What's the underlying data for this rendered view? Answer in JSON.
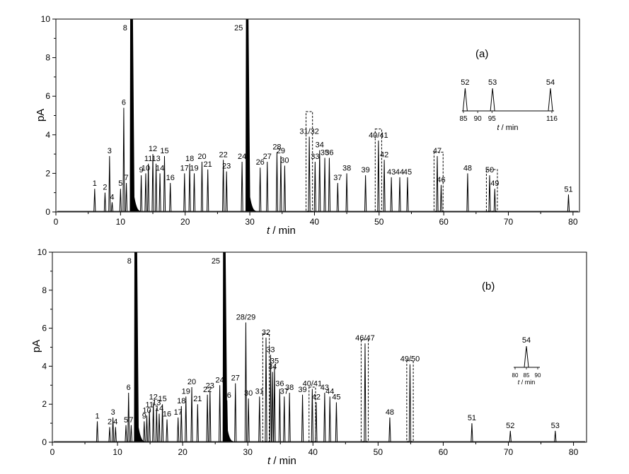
{
  "chart_data": [
    {
      "type": "line",
      "annotation": "(a)",
      "xlabel_var": "t",
      "xlabel_unit": " / min",
      "ylabel": "pA",
      "xlim": [
        0,
        81
      ],
      "ylim": [
        0,
        10
      ],
      "xticks": [
        "0",
        "10",
        "20",
        "30",
        "40",
        "50",
        "60",
        "70",
        "80"
      ],
      "yticks": [
        "0",
        "2",
        "4",
        "6",
        "8",
        "10"
      ],
      "peaks": [
        {
          "label": "1",
          "t": 6.0,
          "h": 1.2
        },
        {
          "label": "2",
          "t": 7.6,
          "h": 1.0
        },
        {
          "label": "3",
          "t": 8.3,
          "h": 2.9
        },
        {
          "label": "4",
          "t": 8.7,
          "h": 0.5
        },
        {
          "label": "5",
          "t": 10.0,
          "h": 1.2
        },
        {
          "label": "6",
          "t": 10.5,
          "h": 5.4
        },
        {
          "label": "7",
          "t": 10.9,
          "h": 1.5
        },
        {
          "label": "8",
          "t": 11.7,
          "h": 11.0
        },
        {
          "label": "9",
          "t": 13.2,
          "h": 1.9
        },
        {
          "label": "10",
          "t": 13.9,
          "h": 2.0
        },
        {
          "label": "11",
          "t": 14.3,
          "h": 2.5
        },
        {
          "label": "12",
          "t": 15.0,
          "h": 3.0
        },
        {
          "label": "13",
          "t": 15.5,
          "h": 2.5
        },
        {
          "label": "14",
          "t": 16.1,
          "h": 2.0
        },
        {
          "label": "15",
          "t": 16.8,
          "h": 2.9
        },
        {
          "label": "16",
          "t": 17.7,
          "h": 1.5
        },
        {
          "label": "17",
          "t": 19.9,
          "h": 2.0
        },
        {
          "label": "18",
          "t": 20.7,
          "h": 2.5
        },
        {
          "label": "19",
          "t": 21.4,
          "h": 2.0
        },
        {
          "label": "20",
          "t": 22.6,
          "h": 2.6
        },
        {
          "label": "21",
          "t": 23.5,
          "h": 2.2
        },
        {
          "label": "22",
          "t": 25.9,
          "h": 2.7
        },
        {
          "label": "23",
          "t": 26.4,
          "h": 2.1
        },
        {
          "label": "24",
          "t": 28.8,
          "h": 2.6
        },
        {
          "label": "25",
          "t": 29.6,
          "h": 10.0
        },
        {
          "label": "26",
          "t": 31.6,
          "h": 2.3
        },
        {
          "label": "27",
          "t": 32.7,
          "h": 2.6
        },
        {
          "label": "28",
          "t": 34.2,
          "h": 3.1
        },
        {
          "label": "29",
          "t": 34.8,
          "h": 2.9
        },
        {
          "label": "30",
          "t": 35.4,
          "h": 2.4
        },
        {
          "label": "31/32",
          "t": 39.2,
          "h": 3.9
        },
        {
          "label": "33",
          "t": 40.1,
          "h": 2.6
        },
        {
          "label": "34",
          "t": 40.8,
          "h": 3.2
        },
        {
          "label": "35",
          "t": 41.6,
          "h": 2.8
        },
        {
          "label": "36",
          "t": 42.3,
          "h": 2.8
        },
        {
          "label": "37",
          "t": 43.6,
          "h": 1.5
        },
        {
          "label": "38",
          "t": 45.0,
          "h": 2.0
        },
        {
          "label": "39",
          "t": 47.9,
          "h": 1.9
        },
        {
          "label": "40/41",
          "t": 49.9,
          "h": 3.7
        },
        {
          "label": "42",
          "t": 50.8,
          "h": 2.7
        },
        {
          "label": "43",
          "t": 51.9,
          "h": 1.8
        },
        {
          "label": "44",
          "t": 53.2,
          "h": 1.8
        },
        {
          "label": "45",
          "t": 54.4,
          "h": 1.8
        },
        {
          "label": "46",
          "t": 59.6,
          "h": 1.4
        },
        {
          "label": "47",
          "t": 59.0,
          "h": 2.9
        },
        {
          "label": "48",
          "t": 63.7,
          "h": 2.0
        },
        {
          "label": "50",
          "t": 67.1,
          "h": 1.9
        },
        {
          "label": "49",
          "t": 67.9,
          "h": 1.2
        },
        {
          "label": "51",
          "t": 79.3,
          "h": 0.9
        }
      ],
      "boxes": [
        {
          "t1": 38.7,
          "t2": 39.7,
          "h": 5.2
        },
        {
          "t1": 49.4,
          "t2": 50.4,
          "h": 4.3
        },
        {
          "t1": 58.5,
          "t2": 59.9,
          "h": 3.1
        },
        {
          "t1": 66.6,
          "t2": 68.3,
          "h": 2.2
        }
      ],
      "inset": {
        "xlabel_var": "t",
        "xlabel_unit": " / min",
        "ticks": [
          "85",
          "90",
          "95",
          "116"
        ],
        "peaks": [
          {
            "label": "52",
            "t": 85.6
          },
          {
            "label": "53",
            "t": 95.2
          },
          {
            "label": "54",
            "t": 115.5
          }
        ]
      }
    },
    {
      "type": "line",
      "annotation": "(b)",
      "xlabel_var": "t",
      "xlabel_unit": " / min",
      "ylabel": "pA",
      "xlim": [
        0,
        82
      ],
      "ylim": [
        0,
        10
      ],
      "xticks": [
        "0",
        "10",
        "20",
        "30",
        "40",
        "50",
        "60",
        "70",
        "80"
      ],
      "yticks": [
        "0",
        "2",
        "4",
        "6",
        "8",
        "10"
      ],
      "peaks": [
        {
          "label": "1",
          "t": 6.9,
          "h": 1.1
        },
        {
          "label": "2",
          "t": 8.8,
          "h": 0.8
        },
        {
          "label": "3",
          "t": 9.3,
          "h": 1.3
        },
        {
          "label": "4",
          "t": 9.7,
          "h": 0.8
        },
        {
          "label": "5",
          "t": 11.3,
          "h": 0.9
        },
        {
          "label": "6",
          "t": 11.7,
          "h": 2.6
        },
        {
          "label": "7",
          "t": 12.1,
          "h": 0.9
        },
        {
          "label": "8",
          "t": 12.8,
          "h": 11.0
        },
        {
          "label": "9",
          "t": 14.1,
          "h": 1.1
        },
        {
          "label": "10",
          "t": 14.5,
          "h": 1.4
        },
        {
          "label": "11",
          "t": 14.9,
          "h": 1.7
        },
        {
          "label": "12",
          "t": 15.5,
          "h": 2.1
        },
        {
          "label": "13",
          "t": 16.0,
          "h": 1.8
        },
        {
          "label": "14",
          "t": 16.4,
          "h": 1.5
        },
        {
          "label": "15",
          "t": 16.9,
          "h": 2.0
        },
        {
          "label": "16",
          "t": 17.6,
          "h": 1.2
        },
        {
          "label": "17",
          "t": 19.3,
          "h": 1.3
        },
        {
          "label": "18",
          "t": 19.8,
          "h": 1.9
        },
        {
          "label": "19",
          "t": 20.5,
          "h": 2.4
        },
        {
          "label": "20",
          "t": 21.4,
          "h": 2.9
        },
        {
          "label": "21",
          "t": 22.3,
          "h": 2.0
        },
        {
          "label": "22",
          "t": 23.8,
          "h": 2.5
        },
        {
          "label": "23",
          "t": 24.2,
          "h": 2.7
        },
        {
          "label": "24",
          "t": 25.7,
          "h": 3.0
        },
        {
          "label": "25",
          "t": 26.4,
          "h": 10.0
        },
        {
          "label": "26",
          "t": 26.8,
          "h": 2.2
        },
        {
          "label": "27",
          "t": 28.1,
          "h": 3.1
        },
        {
          "label": "28/29",
          "t": 29.7,
          "h": 6.3
        },
        {
          "label": "30",
          "t": 30.1,
          "h": 2.3
        },
        {
          "label": "31",
          "t": 31.8,
          "h": 2.4
        },
        {
          "label": "32",
          "t": 32.8,
          "h": 5.5
        },
        {
          "label": "33",
          "t": 33.5,
          "h": 4.6
        },
        {
          "label": "35",
          "t": 34.1,
          "h": 4.0
        },
        {
          "label": "34",
          "t": 33.8,
          "h": 3.7
        },
        {
          "label": "36",
          "t": 34.9,
          "h": 2.8
        },
        {
          "label": "37",
          "t": 35.6,
          "h": 2.4
        },
        {
          "label": "38",
          "t": 36.4,
          "h": 2.6
        },
        {
          "label": "39",
          "t": 38.4,
          "h": 2.5
        },
        {
          "label": "40/41",
          "t": 39.9,
          "h": 2.8
        },
        {
          "label": "42",
          "t": 40.5,
          "h": 2.1
        },
        {
          "label": "43",
          "t": 41.8,
          "h": 2.6
        },
        {
          "label": "44",
          "t": 42.6,
          "h": 2.4
        },
        {
          "label": "45",
          "t": 43.6,
          "h": 2.1
        },
        {
          "label": "46/47",
          "t": 48.0,
          "h": 5.2
        },
        {
          "label": "48",
          "t": 51.8,
          "h": 1.3
        },
        {
          "label": "49/50",
          "t": 54.9,
          "h": 4.1
        },
        {
          "label": "51",
          "t": 64.4,
          "h": 1.0
        },
        {
          "label": "52",
          "t": 70.3,
          "h": 0.6
        },
        {
          "label": "53",
          "t": 77.2,
          "h": 0.6
        }
      ],
      "boxes": [
        {
          "t1": 32.3,
          "t2": 33.3,
          "h": 5.7
        },
        {
          "t1": 39.4,
          "t2": 40.4,
          "h": 2.9
        },
        {
          "t1": 47.4,
          "t2": 48.5,
          "h": 5.4
        },
        {
          "t1": 54.4,
          "t2": 55.4,
          "h": 4.3
        }
      ],
      "inset": {
        "xlabel_var": "t",
        "xlabel_unit": " / min",
        "ticks": [
          "80",
          "85",
          "90"
        ],
        "peaks": [
          {
            "label": "54",
            "t": 85.0
          }
        ]
      }
    }
  ]
}
